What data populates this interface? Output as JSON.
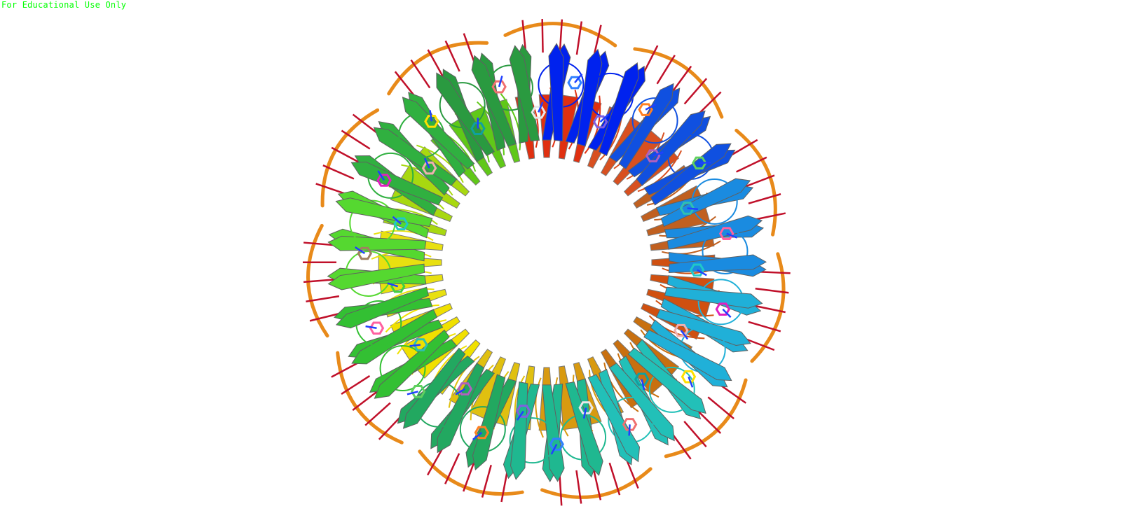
{
  "viewer": {
    "watermark_text": "For Educational Use Only",
    "watermark_color": "#00ff00",
    "background_color": "#ffffff"
  },
  "structure": {
    "representation": "cartoon ring with DNA backbone and stick side chains",
    "subunit_count": 11,
    "subunit_colors": [
      "#0022ee",
      "#1050e0",
      "#1a8be0",
      "#20b0d8",
      "#22c0b8",
      "#1fb890",
      "#22a860",
      "#33c033",
      "#55d830",
      "#30b040",
      "#2a9a40"
    ],
    "inner_sheet_colors": [
      "#d05010",
      "#c87010",
      "#d89a10",
      "#e0c010",
      "#f0e000",
      "#e8e010",
      "#a8d810",
      "#60c818",
      "#e03010",
      "#d85020",
      "#c06020"
    ],
    "dna_backbone_color": "#e88a1a",
    "dna_rung_color": "#c0102a",
    "stick_colors": [
      "#20c8c8",
      "#e020c0",
      "#f0b0b0",
      "#ffe000",
      "#10a0a0",
      "#f07070",
      "#e8e8e8",
      "#3080ff",
      "#8060e0",
      "#ff8020",
      "#b060c0",
      "#60d060",
      "#30c0b0",
      "#ff60a0",
      "#40d040",
      "#a08060"
    ]
  }
}
